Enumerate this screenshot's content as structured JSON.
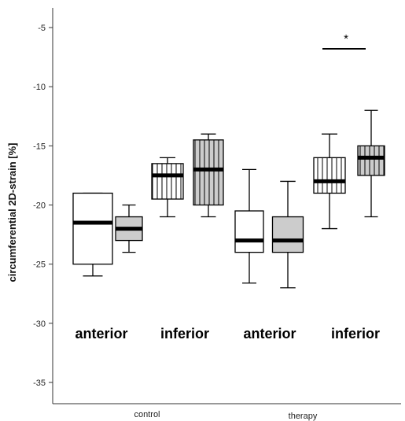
{
  "chart_data": {
    "type": "box",
    "ylabel": "circumferential 2D-strain [%]",
    "yticks": [
      -5,
      -10,
      -15,
      -20,
      -25,
      -30,
      -35
    ],
    "ylim": [
      -36.5,
      -2
    ],
    "categories": [
      "control",
      "therapy"
    ],
    "region_labels": [
      "anterior",
      "inferior",
      "anterior",
      "inferior"
    ],
    "boxes": [
      {
        "category": "control",
        "region": "anterior",
        "fill": "white",
        "whisker_low": -26,
        "q1": -25,
        "median": -21.5,
        "q3": -19,
        "whisker_high": -19
      },
      {
        "category": "control",
        "region": "anterior",
        "fill": "gray",
        "whisker_low": -24,
        "q1": -23,
        "median": -22,
        "q3": -21,
        "whisker_high": -20
      },
      {
        "category": "control",
        "region": "inferior",
        "fill": "white-striped",
        "whisker_low": -21,
        "q1": -19.5,
        "median": -17.5,
        "q3": -16.5,
        "whisker_high": -16
      },
      {
        "category": "control",
        "region": "inferior",
        "fill": "gray-striped",
        "whisker_low": -21,
        "q1": -20,
        "median": -17,
        "q3": -14.5,
        "whisker_high": -14
      },
      {
        "category": "therapy",
        "region": "anterior",
        "fill": "white",
        "whisker_low": -26.6,
        "q1": -24,
        "median": -23,
        "q3": -20.5,
        "whisker_high": -17
      },
      {
        "category": "therapy",
        "region": "anterior",
        "fill": "gray",
        "whisker_low": -27,
        "q1": -24,
        "median": -23,
        "q3": -21,
        "whisker_high": -18
      },
      {
        "category": "therapy",
        "region": "inferior",
        "fill": "white-striped",
        "whisker_low": -22,
        "q1": -19,
        "median": -18,
        "q3": -16,
        "whisker_high": -14
      },
      {
        "category": "therapy",
        "region": "inferior",
        "fill": "gray-striped",
        "whisker_low": -21,
        "q1": -17.5,
        "median": -16,
        "q3": -15,
        "whisker_high": -12
      }
    ],
    "significance": {
      "marker": "*",
      "value": -4.7
    },
    "colors": {
      "gray_fill": "#cccccc",
      "white_fill": "#ffffff",
      "stroke": "#000000",
      "median": "#000000"
    },
    "grid": false
  }
}
